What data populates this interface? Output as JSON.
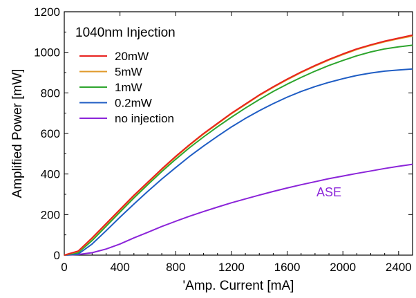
{
  "chart_data": {
    "type": "line",
    "xlabel": "'Amp. Current  [mA]",
    "ylabel": "Amplified Power  [mW]",
    "xlim": [
      0,
      2500
    ],
    "ylim": [
      0,
      1200
    ],
    "xticks": [
      0,
      400,
      800,
      1200,
      1600,
      2000,
      2400
    ],
    "yticks": [
      0,
      200,
      400,
      600,
      800,
      1000,
      1200
    ],
    "grid": false,
    "legend_title": "1040nm Injection",
    "legend_position": "top-left",
    "series": [
      {
        "name": "20mW",
        "color": "#e8221e",
        "x": [
          0,
          100,
          200,
          300,
          400,
          500,
          600,
          700,
          800,
          900,
          1000,
          1100,
          1200,
          1300,
          1400,
          1500,
          1600,
          1700,
          1800,
          1900,
          2000,
          2100,
          2200,
          2300,
          2400,
          2500
        ],
        "y": [
          0,
          20,
          85,
          155,
          225,
          295,
          360,
          425,
          487,
          545,
          600,
          650,
          700,
          745,
          790,
          830,
          868,
          903,
          935,
          965,
          992,
          1017,
          1037,
          1055,
          1070,
          1085
        ]
      },
      {
        "name": " 5mW",
        "color": "#e0992a",
        "x": [
          0,
          100,
          200,
          300,
          400,
          500,
          600,
          700,
          800,
          900,
          1000,
          1100,
          1200,
          1300,
          1400,
          1500,
          1600,
          1700,
          1800,
          1900,
          2000,
          2100,
          2200,
          2300,
          2400,
          2500
        ],
        "y": [
          0,
          18,
          82,
          152,
          222,
          292,
          357,
          422,
          484,
          542,
          597,
          647,
          697,
          742,
          787,
          827,
          865,
          900,
          932,
          962,
          989,
          1014,
          1034,
          1052,
          1067,
          1080
        ]
      },
      {
        "name": " 1mW",
        "color": "#2da52d",
        "x": [
          0,
          100,
          200,
          300,
          400,
          500,
          600,
          700,
          800,
          900,
          1000,
          1100,
          1200,
          1300,
          1400,
          1500,
          1600,
          1700,
          1800,
          1900,
          2000,
          2100,
          2200,
          2300,
          2400,
          2500
        ],
        "y": [
          0,
          12,
          72,
          142,
          212,
          282,
          348,
          412,
          473,
          530,
          583,
          633,
          680,
          725,
          767,
          807,
          843,
          876,
          907,
          935,
          960,
          983,
          1002,
          1017,
          1027,
          1035
        ]
      },
      {
        "name": "0.2mW",
        "color": "#1f5dc4",
        "x": [
          0,
          100,
          200,
          300,
          400,
          500,
          600,
          700,
          800,
          900,
          1000,
          1100,
          1200,
          1300,
          1400,
          1500,
          1600,
          1700,
          1800,
          1900,
          2000,
          2100,
          2200,
          2300,
          2400,
          2500
        ],
        "y": [
          0,
          5,
          55,
          120,
          187,
          252,
          315,
          375,
          432,
          487,
          538,
          586,
          632,
          674,
          712,
          747,
          779,
          807,
          831,
          852,
          870,
          886,
          898,
          907,
          913,
          918
        ]
      },
      {
        "name": "no injection",
        "color": "#8b24d9",
        "x": [
          0,
          100,
          200,
          300,
          400,
          500,
          600,
          700,
          800,
          900,
          1000,
          1100,
          1200,
          1300,
          1400,
          1500,
          1600,
          1700,
          1800,
          1900,
          2000,
          2100,
          2200,
          2300,
          2400,
          2500
        ],
        "y": [
          0,
          3,
          12,
          30,
          55,
          85,
          113,
          141,
          167,
          192,
          215,
          237,
          258,
          277,
          296,
          314,
          331,
          347,
          362,
          377,
          390,
          403,
          415,
          427,
          438,
          448
        ]
      }
    ],
    "annotations": [
      {
        "text": "ASE",
        "x": 1900,
        "y": 290,
        "color": "#8b24d9"
      }
    ]
  }
}
